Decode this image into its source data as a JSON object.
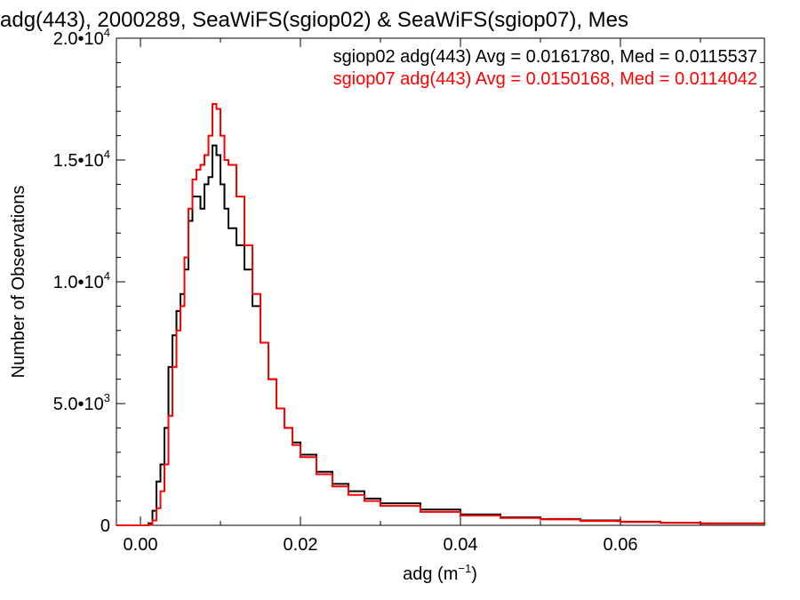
{
  "chart_data": {
    "type": "line",
    "title": "adg(443), 2000289, SeaWiFS(sgiop02) & SeaWiFS(sgiop07), Mes",
    "xlabel_main": "adg (m",
    "xlabel_sup": "−1",
    "xlabel_close": ")",
    "ylabel": "Number of Observations",
    "xlim": [
      -0.003,
      0.078
    ],
    "ylim": [
      0,
      20000
    ],
    "x_ticks": [
      {
        "value": 0.0,
        "label": "0.00"
      },
      {
        "value": 0.02,
        "label": "0.02"
      },
      {
        "value": 0.04,
        "label": "0.04"
      },
      {
        "value": 0.06,
        "label": "0.06"
      }
    ],
    "y_ticks": [
      {
        "value": 0,
        "base": "0",
        "exp": ""
      },
      {
        "value": 5000,
        "base": "5.0•10",
        "exp": "3"
      },
      {
        "value": 10000,
        "base": "1.0•10",
        "exp": "4"
      },
      {
        "value": 15000,
        "base": "1.5•10",
        "exp": "4"
      },
      {
        "value": 20000,
        "base": "2.0•10",
        "exp": "4"
      }
    ],
    "grid": false,
    "legend_position": "top-right",
    "series": [
      {
        "name": "sgiop02 adg(443) Avg = 0.0161780, Med = 0.0115537",
        "color": "#000000",
        "x": [
          -0.003,
          0.0,
          0.001,
          0.0015,
          0.002,
          0.0025,
          0.003,
          0.0035,
          0.004,
          0.0045,
          0.005,
          0.0055,
          0.006,
          0.0065,
          0.007,
          0.0075,
          0.008,
          0.0085,
          0.009,
          0.0095,
          0.01,
          0.0105,
          0.011,
          0.012,
          0.013,
          0.014,
          0.015,
          0.016,
          0.017,
          0.018,
          0.019,
          0.02,
          0.022,
          0.024,
          0.026,
          0.028,
          0.03,
          0.035,
          0.04,
          0.045,
          0.05,
          0.055,
          0.06,
          0.065,
          0.07,
          0.078
        ],
        "y": [
          0,
          0,
          80,
          600,
          1800,
          2500,
          4000,
          6500,
          7800,
          8800,
          9500,
          10500,
          12500,
          13500,
          13500,
          13000,
          14000,
          14300,
          15600,
          15200,
          14000,
          13000,
          12200,
          11500,
          10500,
          9000,
          7500,
          6000,
          4800,
          4000,
          3400,
          2900,
          2200,
          1700,
          1400,
          1100,
          900,
          650,
          450,
          330,
          260,
          200,
          150,
          110,
          80,
          40
        ]
      },
      {
        "name": "sgiop07 adg(443) Avg = 0.0150168, Med = 0.0114042",
        "color": "#ff0000",
        "x": [
          -0.003,
          0.0,
          0.001,
          0.0015,
          0.002,
          0.0025,
          0.003,
          0.0035,
          0.004,
          0.0045,
          0.005,
          0.0055,
          0.006,
          0.0065,
          0.007,
          0.0075,
          0.008,
          0.0085,
          0.009,
          0.0095,
          0.01,
          0.0105,
          0.011,
          0.012,
          0.013,
          0.014,
          0.015,
          0.016,
          0.017,
          0.018,
          0.019,
          0.02,
          0.022,
          0.024,
          0.026,
          0.028,
          0.03,
          0.035,
          0.04,
          0.045,
          0.05,
          0.055,
          0.06,
          0.065,
          0.07,
          0.078
        ],
        "y": [
          0,
          0,
          30,
          200,
          700,
          1400,
          2500,
          4500,
          6500,
          8000,
          9000,
          11000,
          13000,
          14200,
          14600,
          14800,
          15200,
          16000,
          17300,
          17100,
          16000,
          15000,
          14800,
          13500,
          11500,
          9500,
          7500,
          6000,
          4800,
          4000,
          3300,
          2800,
          2100,
          1600,
          1250,
          1000,
          800,
          550,
          400,
          300,
          240,
          180,
          140,
          100,
          70,
          30
        ]
      }
    ]
  }
}
